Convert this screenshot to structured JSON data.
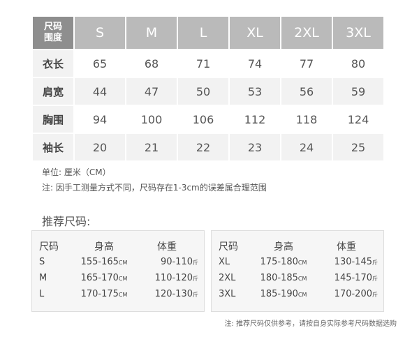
{
  "size_table": {
    "corner": [
      "尺码",
      "围度"
    ],
    "sizes": [
      "S",
      "M",
      "L",
      "XL",
      "2XL",
      "3XL"
    ],
    "rows": [
      {
        "label": "衣长",
        "values": [
          "65",
          "68",
          "71",
          "74",
          "77",
          "80"
        ]
      },
      {
        "label": "肩宽",
        "values": [
          "44",
          "47",
          "50",
          "53",
          "56",
          "59"
        ]
      },
      {
        "label": "胸围",
        "values": [
          "94",
          "100",
          "106",
          "112",
          "118",
          "124"
        ]
      },
      {
        "label": "袖长",
        "values": [
          "20",
          "21",
          "22",
          "23",
          "24",
          "25"
        ]
      }
    ]
  },
  "notes": {
    "unit": "单位: 厘米（CM）",
    "error": "注: 因手工测量方式不同，尺码存在1-3cm的误差属合理范围"
  },
  "recommend": {
    "title": "推荐尺码:",
    "headers": [
      "尺码",
      "身高",
      "体重"
    ],
    "height_unit": "CM",
    "weight_unit": "斤",
    "left": [
      {
        "size": "S",
        "height": "155-165",
        "weight": "90-110"
      },
      {
        "size": "M",
        "height": "165-170",
        "weight": "110-120"
      },
      {
        "size": "L",
        "height": "170-175",
        "weight": "120-130"
      }
    ],
    "right": [
      {
        "size": "XL",
        "height": "175-180",
        "weight": "130-145"
      },
      {
        "size": "2XL",
        "height": "180-185",
        "weight": "145-170"
      },
      {
        "size": "3XL",
        "height": "185-190",
        "weight": "170-200"
      }
    ],
    "footnote": "注: 推荐尺码仅供参考，请按自身实际参考尺码数据选购"
  }
}
